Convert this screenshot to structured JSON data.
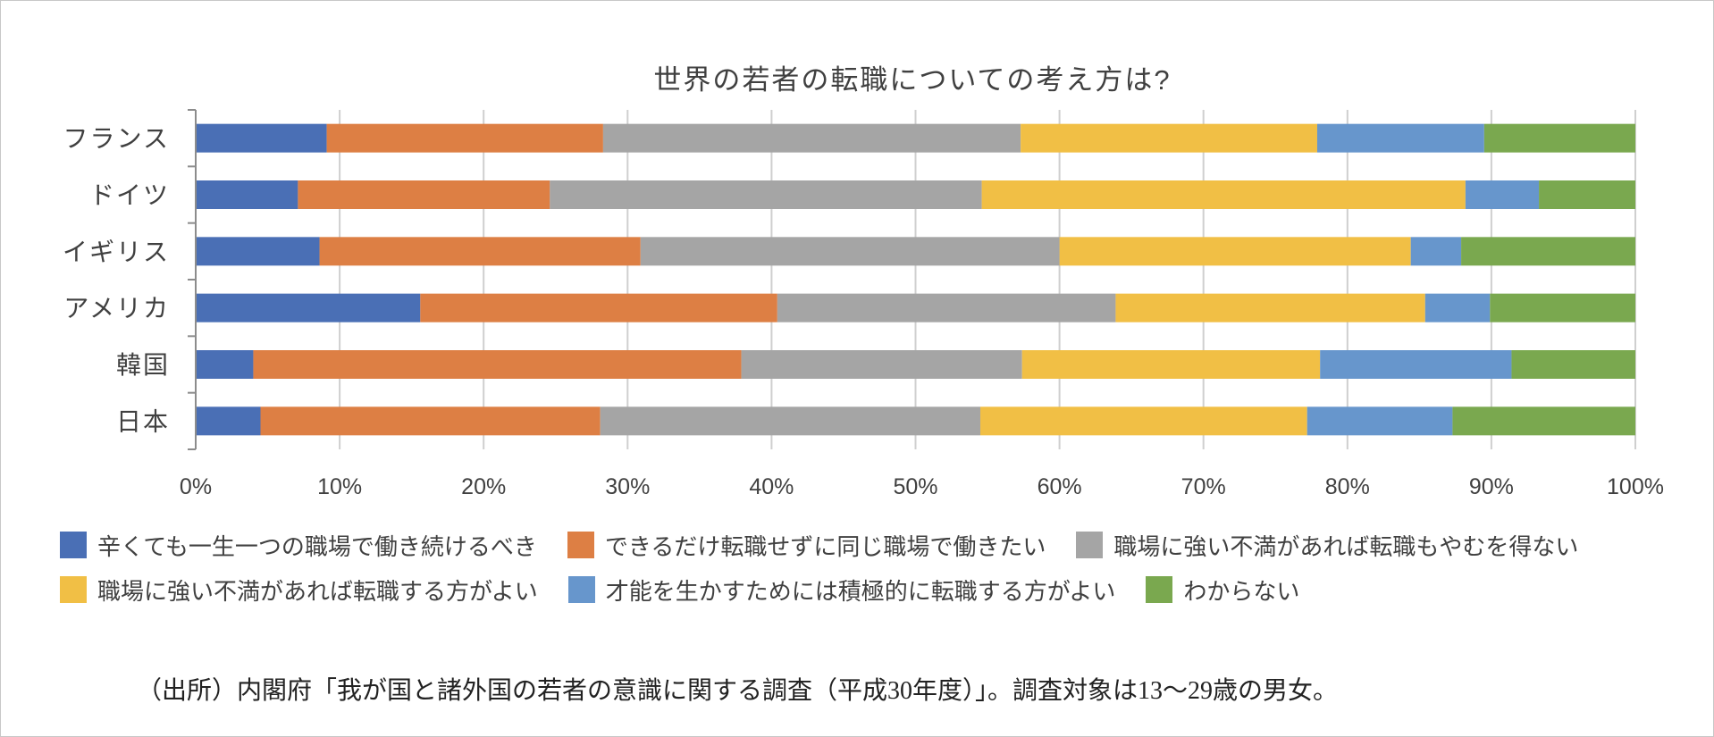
{
  "chart_data": {
    "type": "bar",
    "orientation": "horizontal",
    "stacked": true,
    "percent": true,
    "title": "世界の若者の転職についての考え方は?",
    "categories": [
      "フランス",
      "ドイツ",
      "イギリス",
      "アメリカ",
      "韓国",
      "日本"
    ],
    "xlim": [
      0,
      100
    ],
    "xticks": [
      "0%",
      "10%",
      "20%",
      "30%",
      "40%",
      "50%",
      "60%",
      "70%",
      "80%",
      "90%",
      "100%"
    ],
    "grid": "vertical",
    "legend_position": "bottom",
    "series": [
      {
        "name": "辛くても一生一つの職場で働き続けるべき",
        "color": "#4a6fb5",
        "values": [
          9.1,
          7.1,
          8.6,
          15.6,
          4.0,
          4.5
        ]
      },
      {
        "name": "できるだけ転職せずに同じ職場で働きたい",
        "color": "#dd7f44",
        "values": [
          19.2,
          17.5,
          22.3,
          24.8,
          33.9,
          23.6
        ]
      },
      {
        "name": "職場に強い不満があれば転職もやむを得ない",
        "color": "#a5a5a5",
        "values": [
          29.0,
          30.0,
          29.1,
          23.5,
          19.5,
          26.4
        ]
      },
      {
        "name": "職場に強い不満があれば転職する方がよい",
        "color": "#f1bf45",
        "values": [
          20.6,
          33.6,
          24.4,
          21.5,
          20.7,
          22.7
        ]
      },
      {
        "name": "才能を生かすためには積極的に転職する方がよい",
        "color": "#6796cc",
        "values": [
          11.6,
          5.1,
          3.5,
          4.5,
          13.3,
          10.1
        ]
      },
      {
        "name": "わからない",
        "color": "#7aa84f",
        "values": [
          10.5,
          6.7,
          12.1,
          10.1,
          8.6,
          12.7
        ]
      }
    ]
  },
  "source_note": "（出所）内閣府「我が国と諸外国の若者の意識に関する調査（平成30年度）」。調査対象は13〜29歳の男女。"
}
